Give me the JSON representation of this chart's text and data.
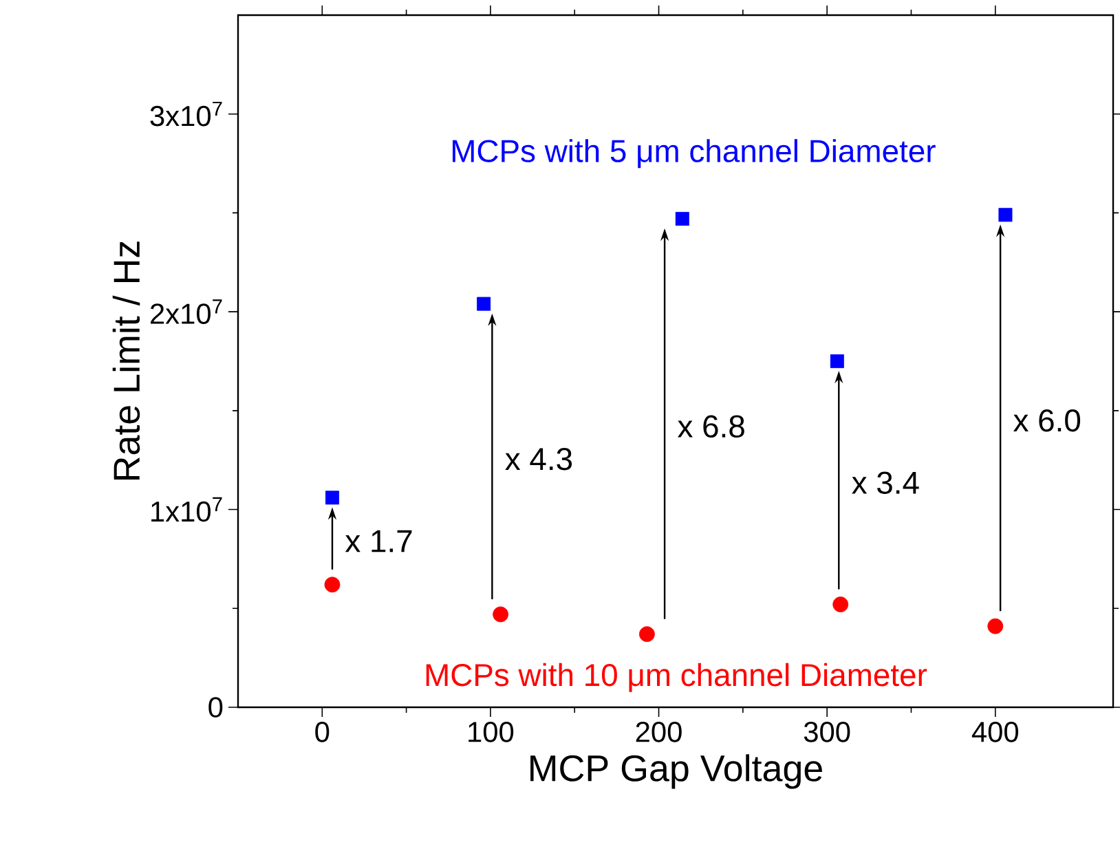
{
  "chart_data": {
    "type": "scatter",
    "xlabel": "MCP Gap Voltage",
    "ylabel": "Rate Limit / Hz",
    "xlim": [
      -50,
      470
    ],
    "ylim": [
      0,
      35000000
    ],
    "xticks": [
      0,
      100,
      200,
      300,
      400
    ],
    "yticks": [
      0,
      {
        "value": 10000000,
        "label": "1x10$^{7}$"
      },
      {
        "value": 20000000,
        "label": "2x10$^{7}$"
      },
      {
        "value": 30000000,
        "label": "3x10$^{7}$"
      }
    ],
    "grid": false,
    "series": [
      {
        "name": "MCPs with 5 μm channel Diameter",
        "color": "#0000ff",
        "marker": "square",
        "x": [
          6,
          96,
          214,
          306,
          406
        ],
        "values": [
          10600000,
          20400000,
          24700000,
          17500000,
          24900000
        ]
      },
      {
        "name": "MCPs with 10 μm channel Diameter",
        "color": "#ff0000",
        "marker": "circle",
        "x": [
          6,
          106,
          193,
          308,
          400
        ],
        "values": [
          6200000,
          4700000,
          3700000,
          5200000,
          4100000
        ]
      }
    ],
    "annotations": [
      "x 1.7",
      "x 4.3",
      "x 6.8",
      "x 3.4",
      "x 6.0"
    ]
  }
}
